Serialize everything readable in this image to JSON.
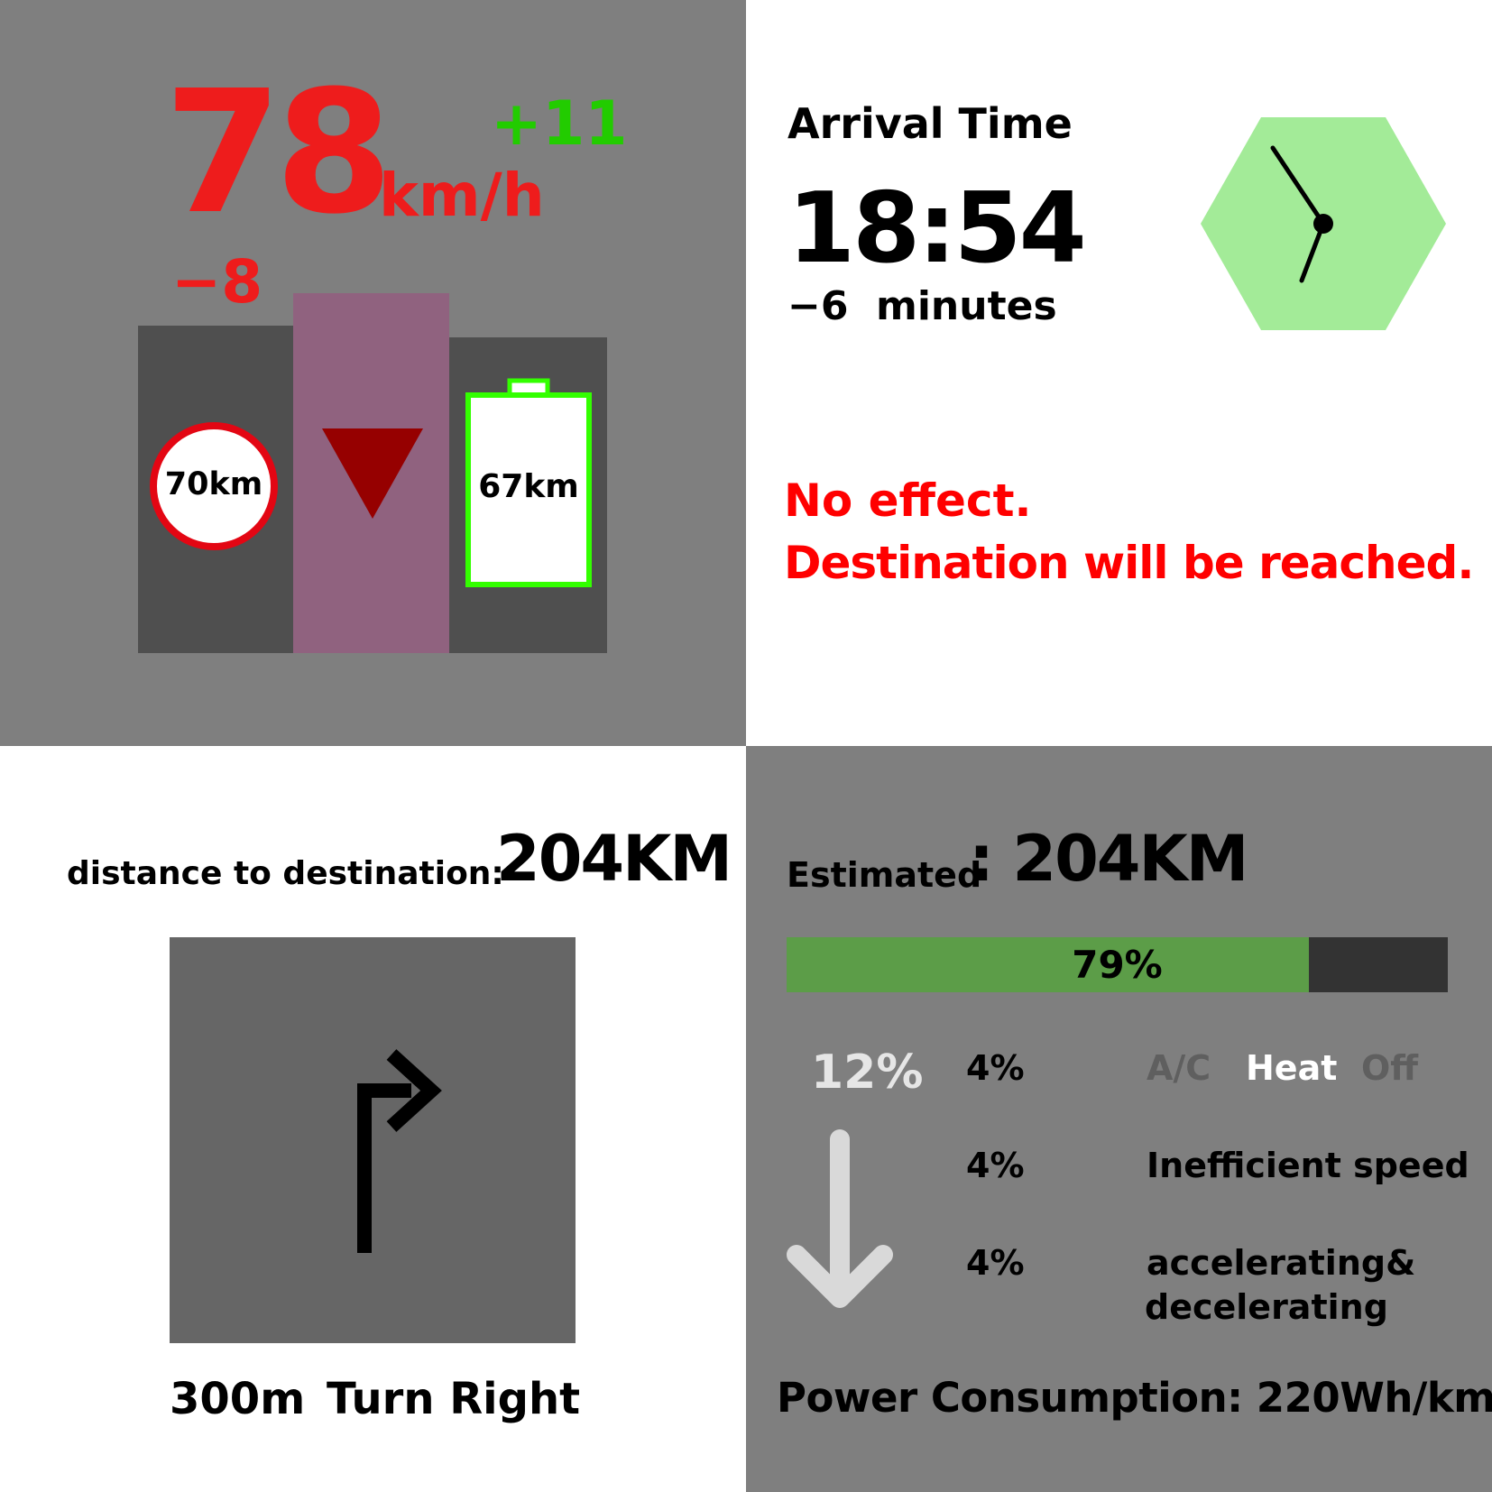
{
  "speed_panel": {
    "speed_value": "78",
    "speed_unit": "km/h",
    "speed_increase": "+11",
    "speed_decrease": "−8",
    "speed_limit_sign": "70km",
    "battery_range": "67km",
    "colors": {
      "speed": "#ee1c1c",
      "increase": "#22cc00",
      "limit_ring": "#e30613",
      "battery_outline": "#33ff00",
      "down_arrow": "#960000",
      "middle_column": "#90627f"
    }
  },
  "arrival_panel": {
    "title": "Arrival Time",
    "time": "18:54",
    "delta_value": "−6",
    "delta_unit": "minutes",
    "message_line1": "No effect.",
    "message_line2": "Destination will be reached.",
    "clock_icon": "clock-icon",
    "colors": {
      "clock_fill": "#a3eb98",
      "message": "#ff0000"
    }
  },
  "navigation_panel": {
    "distance_label": "distance to destination:",
    "distance_value": "204KM",
    "instruction_distance": "300m",
    "instruction_text": "Turn Right",
    "maneuver_icon": "turn-right-arrow-icon"
  },
  "range_panel": {
    "estimated_label": "Estimated",
    "estimated_value": "204KM",
    "battery_percent_text": "79%",
    "battery_fraction": 0.79,
    "reduction_total": "12%",
    "factors": [
      {
        "percent": "4%",
        "label": "Inefficient speed"
      },
      {
        "percent": "4%",
        "label_line1": "accelerating&",
        "label_line2": "decelerating"
      }
    ],
    "climate": {
      "percent": "4%",
      "options": [
        "A/C",
        "Heat",
        "Off"
      ],
      "selected": "Heat"
    },
    "power_consumption": "Power Consumption: 220Wh/km",
    "colors": {
      "bar_fill": "#5c9d48",
      "bar_track": "#333333"
    }
  }
}
